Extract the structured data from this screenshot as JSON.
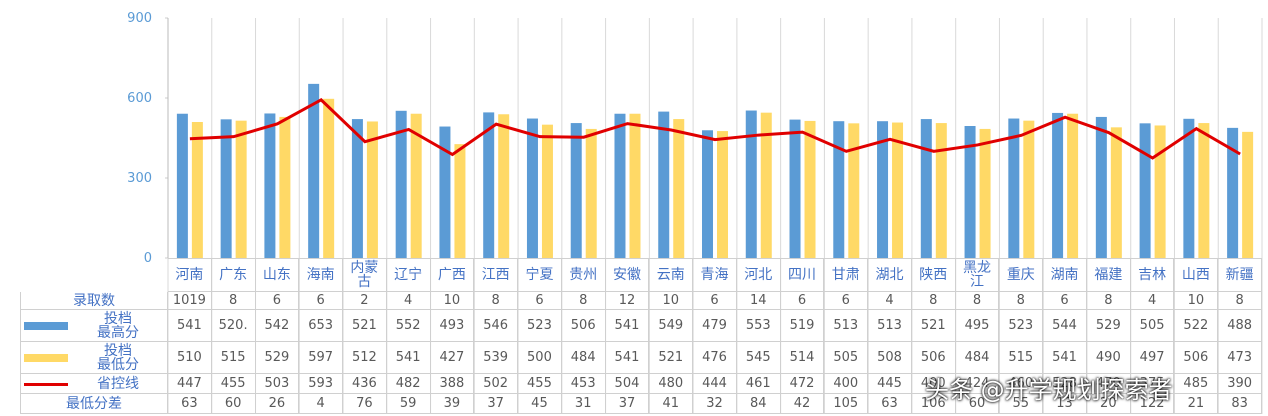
{
  "chart_data": {
    "type": "bar",
    "categories": [
      "河南",
      "广东",
      "山东",
      "海南",
      "内蒙古",
      "辽宁",
      "广西",
      "江西",
      "宁夏",
      "贵州",
      "安徽",
      "云南",
      "青海",
      "河北",
      "四川",
      "甘肃",
      "湖北",
      "陕西",
      "黑龙江",
      "重庆",
      "湖南",
      "福建",
      "吉林",
      "山西",
      "新疆"
    ],
    "ylim": [
      0,
      900
    ],
    "yticks": [
      0,
      300,
      600,
      900
    ],
    "series": [
      {
        "name": "投档\n最高分",
        "color": "#5b9bd5",
        "values": [
          541,
          520,
          542,
          653,
          521,
          552,
          493,
          546,
          523,
          506,
          541,
          549,
          479,
          553,
          519,
          513,
          513,
          521,
          495,
          523,
          544,
          529,
          505,
          522,
          488
        ],
        "value_labels": [
          "541",
          "520.",
          "542",
          "653",
          "521",
          "552",
          "493",
          "546",
          "523",
          "506",
          "541",
          "549",
          "479",
          "553",
          "519",
          "513",
          "513",
          "521",
          "495",
          "523",
          "544",
          "529",
          "505",
          "522",
          "488"
        ]
      },
      {
        "name": "投档\n最低分",
        "color": "#ffd966",
        "values": [
          510,
          515,
          529,
          597,
          512,
          541,
          427,
          539,
          500,
          484,
          541,
          521,
          476,
          545,
          514,
          505,
          508,
          506,
          484,
          515,
          541,
          490,
          497,
          506,
          473
        ]
      },
      {
        "name": "省控线",
        "type": "line",
        "color": "#e00000",
        "values": [
          447,
          455,
          503,
          593,
          436,
          482,
          388,
          502,
          455,
          453,
          504,
          480,
          444,
          461,
          472,
          400,
          445,
          400,
          424,
          460,
          528,
          470,
          375,
          485,
          390
        ]
      }
    ],
    "table_rows": [
      {
        "name": "录取数",
        "values": [
          1019,
          8,
          6,
          6,
          2,
          4,
          10,
          8,
          6,
          8,
          12,
          10,
          6,
          14,
          6,
          6,
          4,
          8,
          8,
          8,
          6,
          8,
          4,
          10,
          8
        ]
      },
      {
        "name": "最低分差",
        "values": [
          63,
          60,
          26,
          4,
          76,
          59,
          39,
          37,
          45,
          31,
          37,
          41,
          32,
          84,
          42,
          105,
          63,
          106,
          60,
          55,
          13,
          20,
          122,
          21,
          83
        ]
      }
    ],
    "watermark": "头条 @升学规划探索者"
  }
}
